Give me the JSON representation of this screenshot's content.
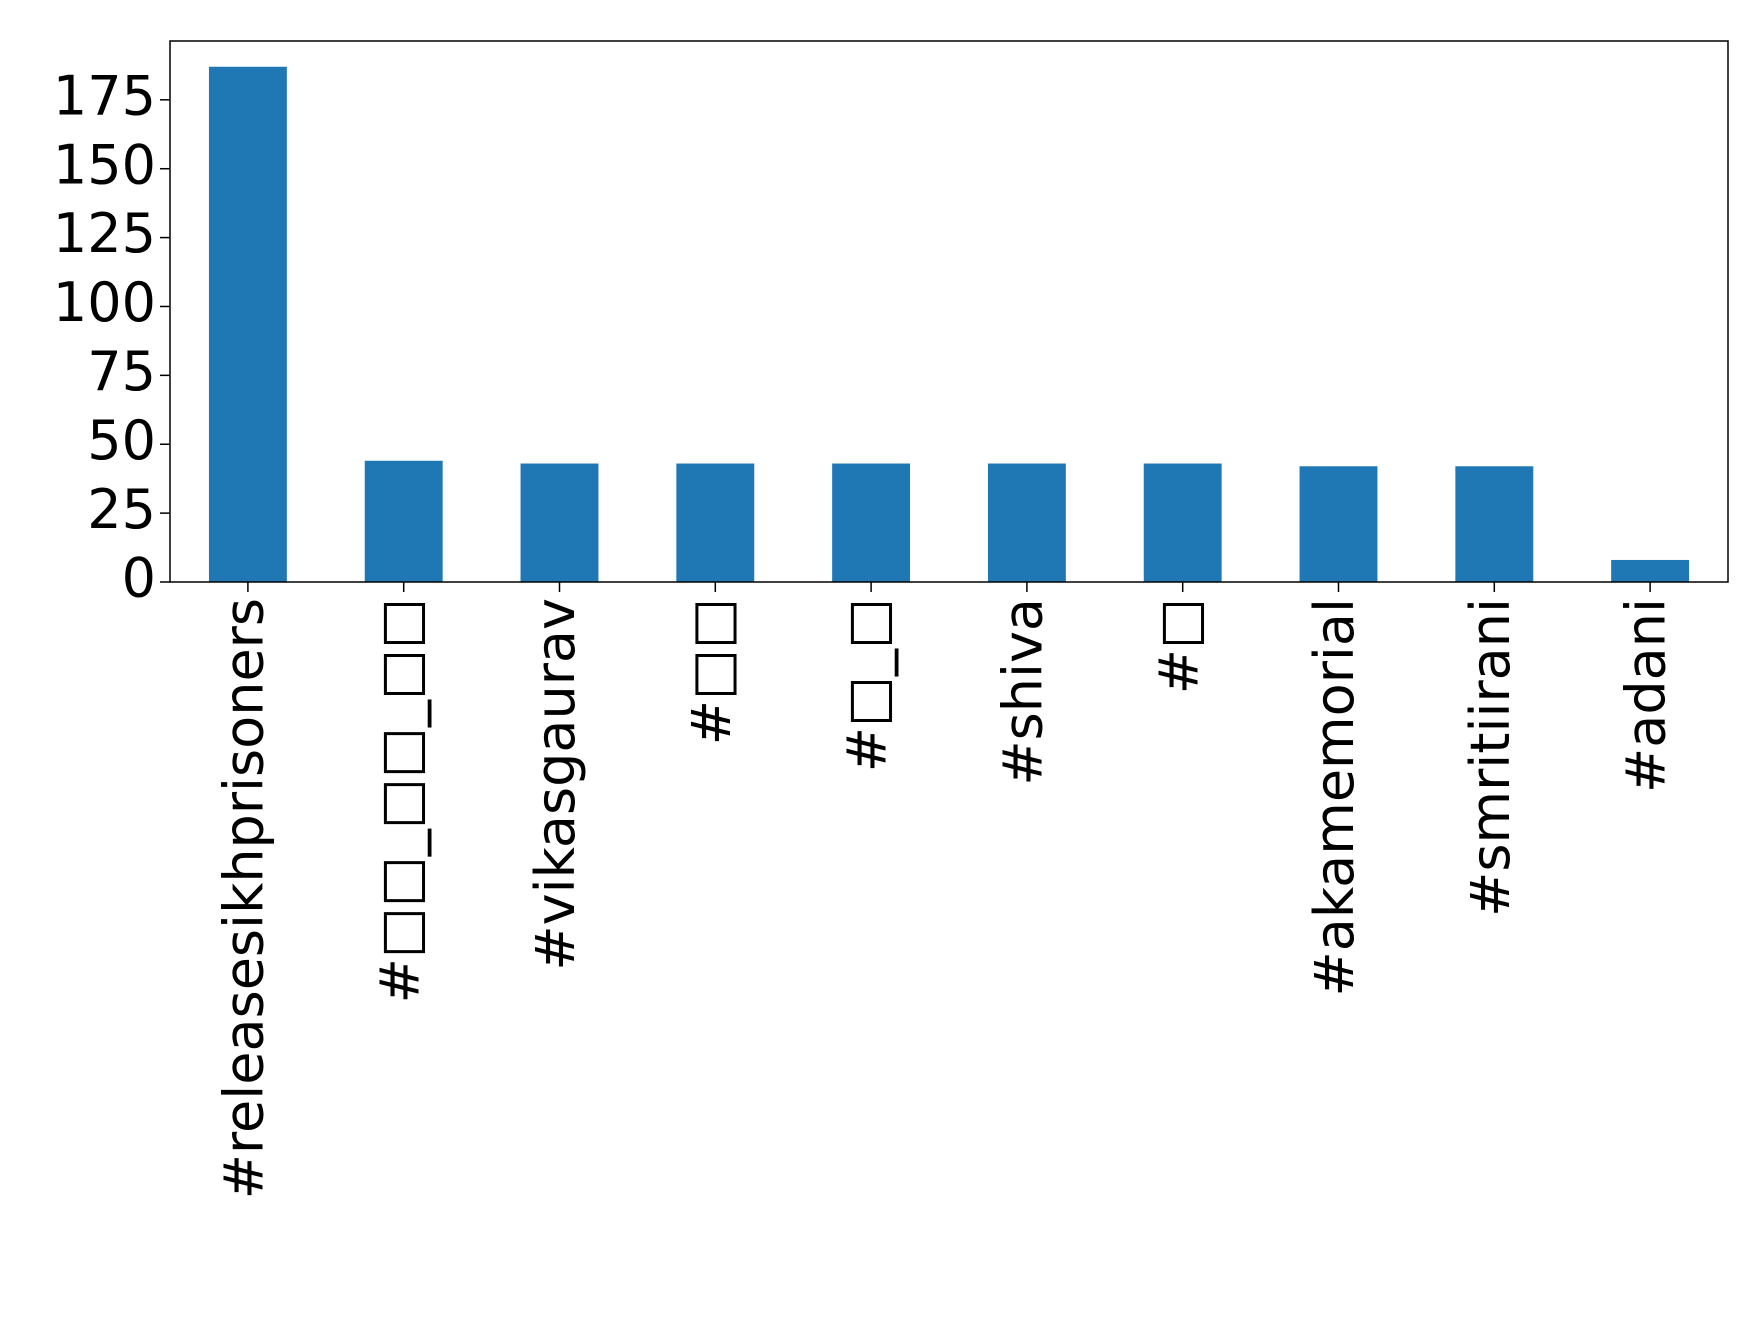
{
  "chart_data": {
    "type": "bar",
    "categories": [
      "#releasesikhprisoners",
      "#□□_□□_□□",
      "#vikasgaurav",
      "#□□",
      "#□_□",
      "#shiva",
      "#□",
      "#akamemorial",
      "#smritiirani",
      "#adani"
    ],
    "values": [
      187,
      44,
      43,
      43,
      43,
      43,
      43,
      42,
      42,
      8
    ],
    "color": "#1f77b4",
    "ylim": [
      0,
      196.35
    ],
    "yticks": [
      0,
      25,
      50,
      75,
      100,
      125,
      150,
      175
    ],
    "grid": false
  }
}
